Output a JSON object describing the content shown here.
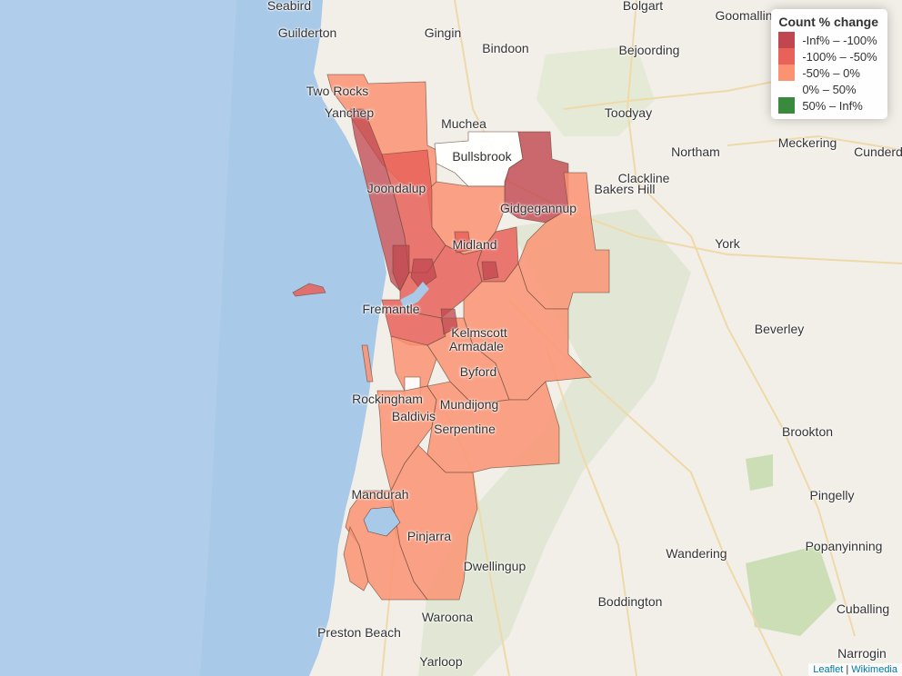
{
  "legend": {
    "title": "Count % change",
    "items": [
      {
        "label": "-Inf% – -100%",
        "color": "#c0464f"
      },
      {
        "label": "-100% – -50%",
        "color": "#e8625a"
      },
      {
        "label": "-50% – 0%",
        "color": "#fb9373"
      },
      {
        "label": "0% – 50%",
        "color": "#ffffff"
      },
      {
        "label": "50% – Inf%",
        "color": "#3a8a3e"
      }
    ]
  },
  "attribution": {
    "leaflet": "Leaflet",
    "separator": " | ",
    "wikimedia": "Wikimedia"
  },
  "towns": [
    {
      "key": "seabird",
      "label": "Seabird"
    },
    {
      "key": "guilderton",
      "label": "Guilderton"
    },
    {
      "key": "bolgart",
      "label": "Bolgart"
    },
    {
      "key": "goomalling",
      "label": "Goomallin"
    },
    {
      "key": "gingin",
      "label": "Gingin"
    },
    {
      "key": "bindoon",
      "label": "Bindoon"
    },
    {
      "key": "bejoording",
      "label": "Bejoording"
    },
    {
      "key": "two-rocks",
      "label": "Two Rocks"
    },
    {
      "key": "yanchep",
      "label": "Yanchep"
    },
    {
      "key": "toodyay",
      "label": "Toodyay"
    },
    {
      "key": "muchea",
      "label": "Muchea"
    },
    {
      "key": "meckering",
      "label": "Meckering"
    },
    {
      "key": "cunderdin",
      "label": "Cunderd"
    },
    {
      "key": "northam",
      "label": "Northam"
    },
    {
      "key": "bullsbrook",
      "label": "Bullsbrook"
    },
    {
      "key": "clackline",
      "label": "Clackline"
    },
    {
      "key": "joondalup",
      "label": "Joondalup"
    },
    {
      "key": "bakers-hill",
      "label": "Bakers Hill"
    },
    {
      "key": "gidgegannup",
      "label": "Gidgegannup"
    },
    {
      "key": "york",
      "label": "York"
    },
    {
      "key": "midland",
      "label": "Midland"
    },
    {
      "key": "beverley",
      "label": "Beverley"
    },
    {
      "key": "fremantle",
      "label": "Fremantle"
    },
    {
      "key": "kelmscott",
      "label": "Kelmscott"
    },
    {
      "key": "armadale",
      "label": "Armadale"
    },
    {
      "key": "byford",
      "label": "Byford"
    },
    {
      "key": "rockingham",
      "label": "Rockingham"
    },
    {
      "key": "mundijong",
      "label": "Mundijong"
    },
    {
      "key": "baldivis",
      "label": "Baldivis"
    },
    {
      "key": "serpentine",
      "label": "Serpentine"
    },
    {
      "key": "brookton",
      "label": "Brookton"
    },
    {
      "key": "mandurah",
      "label": "Mandurah"
    },
    {
      "key": "pingelly",
      "label": "Pingelly"
    },
    {
      "key": "pinjarra",
      "label": "Pinjarra"
    },
    {
      "key": "wandering",
      "label": "Wandering"
    },
    {
      "key": "popanyinning",
      "label": "Popanyinning"
    },
    {
      "key": "dwellingup",
      "label": "Dwellingup"
    },
    {
      "key": "boddington",
      "label": "Boddington"
    },
    {
      "key": "cuballing",
      "label": "Cuballing"
    },
    {
      "key": "preston-beach",
      "label": "Preston Beach"
    },
    {
      "key": "waroona",
      "label": "Waroona"
    },
    {
      "key": "yarloop",
      "label": "Yarloop"
    },
    {
      "key": "narrogin",
      "label": "Narrogin"
    }
  ]
}
